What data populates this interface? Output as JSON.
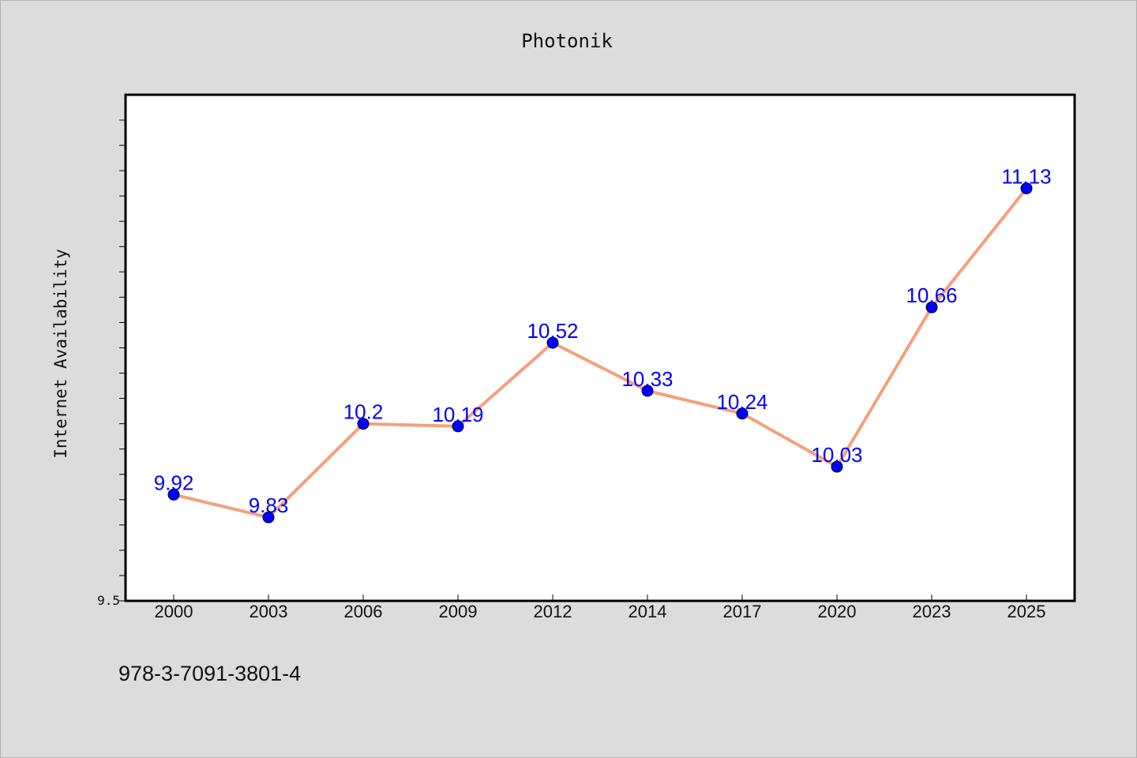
{
  "chart_data": {
    "type": "line",
    "title": "Photonik",
    "ylabel": "Internet Availability",
    "xlabel": "",
    "categories": [
      "2000",
      "2003",
      "2006",
      "2009",
      "2012",
      "2014",
      "2017",
      "2020",
      "2023",
      "2025"
    ],
    "values": [
      9.92,
      9.83,
      10.2,
      10.19,
      10.52,
      10.33,
      10.24,
      10.03,
      10.66,
      11.13
    ],
    "data_labels": [
      "9.92",
      "9.83",
      "10.2",
      "10.19",
      "10.52",
      "10.33",
      "10.24",
      "10.03",
      "10.66",
      "11.13"
    ],
    "ylim": [
      9.5,
      11.5
    ],
    "y_tick_label": "9.5",
    "grid": false,
    "line_color": "#f4a07a",
    "marker_color": "#0000ff",
    "label_color": "#0000ff"
  },
  "footer": {
    "isbn": "978-3-7091-3801-4"
  }
}
